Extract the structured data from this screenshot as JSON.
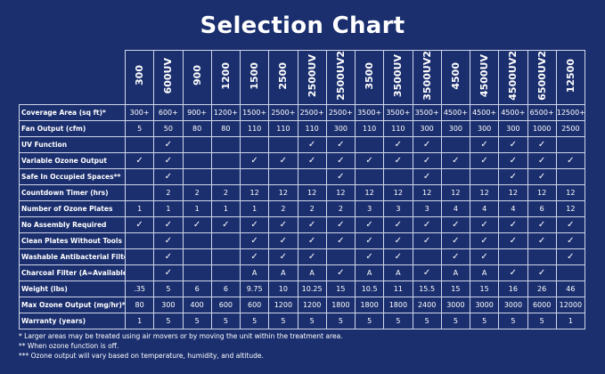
{
  "title": "Selection Chart",
  "models": [
    "300",
    "600UV",
    "900",
    "1200",
    "1500",
    "2500",
    "2500UV",
    "2500UV2",
    "3500",
    "3500UV",
    "3500UV2",
    "4500",
    "4500UV",
    "4500UV2",
    "6500UV2",
    "12500"
  ],
  "rows": [
    {
      "label": "Coverage Area (sq ft)*",
      "values": [
        "300+",
        "600+",
        "900+",
        "1200+",
        "1500+",
        "2500+",
        "2500+",
        "2500+",
        "3500+",
        "3500+",
        "3500+",
        "4500+",
        "4500+",
        "4500+",
        "6500+",
        "12500+"
      ]
    },
    {
      "label": "Fan Output (cfm)",
      "values": [
        "5",
        "50",
        "80",
        "80",
        "110",
        "110",
        "110",
        "300",
        "110",
        "110",
        "300",
        "300",
        "300",
        "300",
        "1000",
        "2500"
      ]
    },
    {
      "label": "UV Function",
      "values": [
        "",
        "✓",
        "",
        "",
        "",
        "",
        "✓",
        "✓",
        "",
        "✓",
        "✓",
        "",
        "✓",
        "✓",
        "✓",
        ""
      ]
    },
    {
      "label": "Variable Ozone Output",
      "values": [
        "✓",
        "✓",
        "",
        "",
        "✓",
        "✓",
        "✓",
        "✓",
        "✓",
        "✓",
        "✓",
        "✓",
        "✓",
        "✓",
        "✓",
        "✓"
      ]
    },
    {
      "label": "Safe In Occupied Spaces**",
      "values": [
        "",
        "✓",
        "",
        "",
        "",
        "",
        "",
        "✓",
        "",
        "",
        "✓",
        "",
        "",
        "✓",
        "✓",
        ""
      ]
    },
    {
      "label": "Countdown Timer (hrs)",
      "values": [
        "",
        "2",
        "2",
        "2",
        "12",
        "12",
        "12",
        "12",
        "12",
        "12",
        "12",
        "12",
        "12",
        "12",
        "12",
        "12"
      ]
    },
    {
      "label": "Number of Ozone Plates",
      "values": [
        "1",
        "1",
        "1",
        "1",
        "1",
        "2",
        "2",
        "2",
        "3",
        "3",
        "3",
        "4",
        "4",
        "4",
        "6",
        "12"
      ]
    },
    {
      "label": "No Assembly Required",
      "values": [
        "✓",
        "✓",
        "✓",
        "✓",
        "✓",
        "✓",
        "✓",
        "✓",
        "✓",
        "✓",
        "✓",
        "✓",
        "✓",
        "✓",
        "✓",
        "✓"
      ]
    },
    {
      "label": "Clean Plates Without Tools",
      "values": [
        "",
        "✓",
        "",
        "",
        "✓",
        "✓",
        "✓",
        "✓",
        "✓",
        "✓",
        "✓",
        "✓",
        "✓",
        "✓",
        "✓",
        "✓"
      ]
    },
    {
      "label": "Washable Antibacterial Filter",
      "values": [
        "",
        "✓",
        "",
        "",
        "✓",
        "✓",
        "✓",
        "",
        "✓",
        "✓",
        "",
        "✓",
        "✓",
        "",
        "",
        "✓"
      ]
    },
    {
      "label": "Charcoal Filter  (A=Available)",
      "values": [
        "",
        "✓",
        "",
        "",
        "A",
        "A",
        "A",
        "✓",
        "A",
        "A",
        "✓",
        "A",
        "A",
        "✓",
        "✓",
        ""
      ]
    },
    {
      "label": "Weight (lbs)",
      "values": [
        ".35",
        "5",
        "6",
        "6",
        "9.75",
        "10",
        "10.25",
        "15",
        "10.5",
        "11",
        "15.5",
        "15",
        "15",
        "16",
        "26",
        "46"
      ]
    },
    {
      "label": "Max Ozone Output (mg/hr)***",
      "values": [
        "80",
        "300",
        "400",
        "600",
        "600",
        "1200",
        "1200",
        "1800",
        "1800",
        "1800",
        "2400",
        "3000",
        "3000",
        "3000",
        "6000",
        "12000"
      ]
    },
    {
      "label": "Warranty (years)",
      "values": [
        "1",
        "5",
        "5",
        "5",
        "5",
        "5",
        "5",
        "5",
        "5",
        "5",
        "5",
        "5",
        "5",
        "5",
        "5",
        "1"
      ]
    }
  ],
  "footnotes": [
    "* Larger areas may be treated using air movers or by moving the unit within the treatment area.",
    "** When ozone function is off.",
    "*** Ozone output will vary based on temperature, humidity, and altitude."
  ]
}
